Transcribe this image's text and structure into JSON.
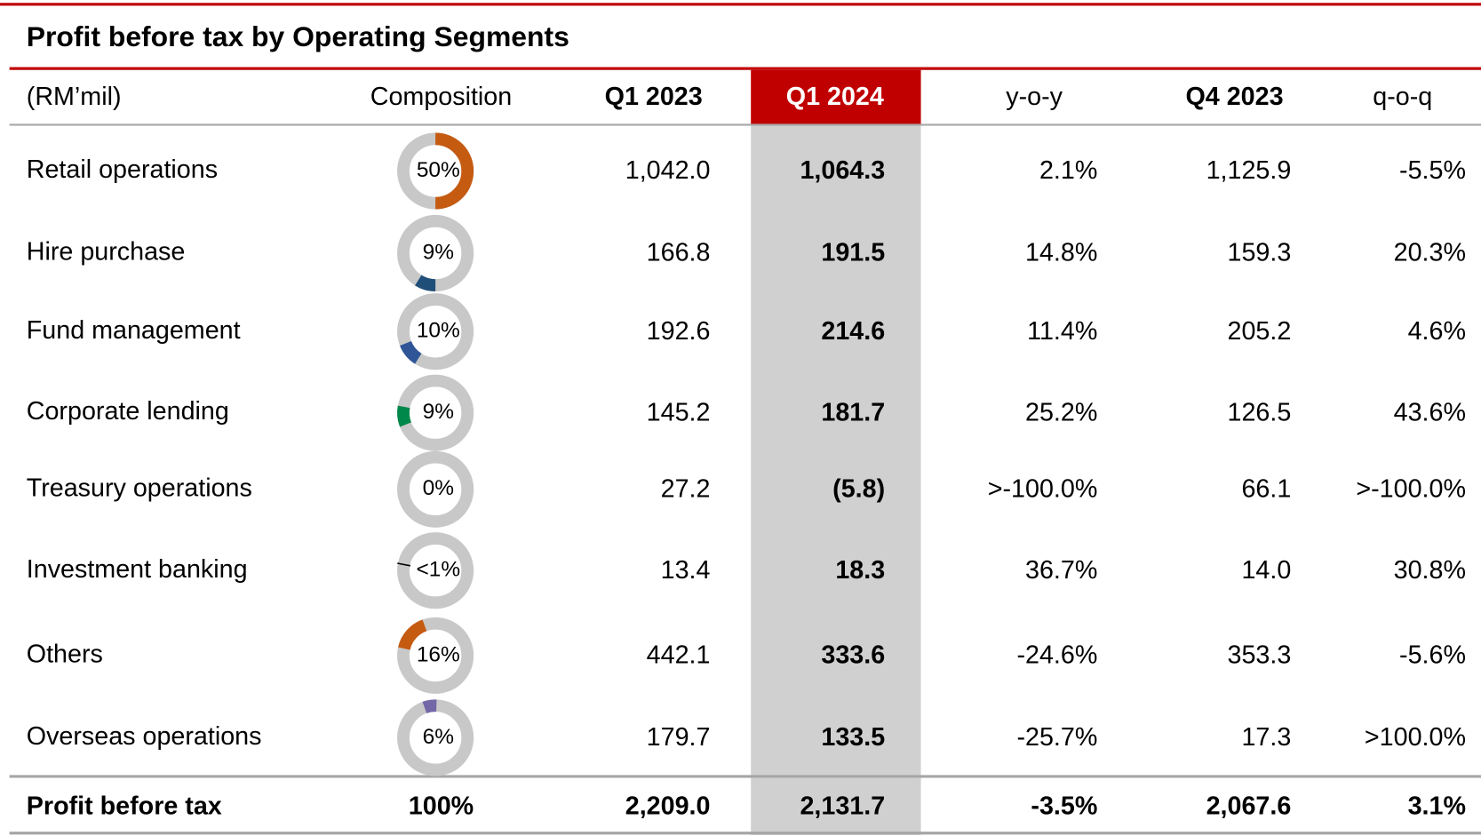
{
  "title": "Profit before tax by Operating Segments",
  "table": {
    "header": [
      "(RM’mil)",
      "Composition",
      "Q1 2023",
      "Q1 2024",
      "y-o-y",
      "Q4 2023",
      "q-o-q"
    ],
    "rows": [
      {
        "label": "Retail operations",
        "composition": {
          "value": 50,
          "label": "50%"
        },
        "color": "#c55a11",
        "cells": [
          "1,042.0",
          "1,064.3",
          "2.1%",
          "1,125.9",
          "-5.5%"
        ]
      },
      {
        "label": "Hire purchase",
        "composition": {
          "value": 9,
          "label": "9%"
        },
        "color": "#1f4e79",
        "cells": [
          "166.8",
          "191.5",
          "14.8%",
          "159.3",
          "20.3%"
        ]
      },
      {
        "label": "Fund management",
        "composition": {
          "value": 10,
          "label": "10%"
        },
        "color": "#2f5597",
        "cells": [
          "192.6",
          "214.6",
          "11.4%",
          "205.2",
          "4.6%"
        ]
      },
      {
        "label": "Corporate lending",
        "composition": {
          "value": 9,
          "label": "9%"
        },
        "color": "#00874a",
        "cells": [
          "145.2",
          "181.7",
          "25.2%",
          "126.5",
          "43.6%"
        ]
      },
      {
        "label": "Treasury operations",
        "composition": {
          "value": 0,
          "label": "0%"
        },
        "color": "#7f7f7f",
        "cells": [
          "27.2",
          "(5.8)",
          ">-100.0%",
          "66.1",
          ">-100.0%"
        ]
      },
      {
        "label": "Investment banking",
        "composition": {
          "value": 0.5,
          "label": "<1%"
        },
        "color": "#000000",
        "cells": [
          "13.4",
          "18.3",
          "36.7%",
          "14.0",
          "30.8%"
        ]
      },
      {
        "label": "Others",
        "composition": {
          "value": 16,
          "label": "16%"
        },
        "color": "#c55a11",
        "cells": [
          "442.1",
          "333.6",
          "-24.6%",
          "353.3",
          "-5.6%"
        ]
      },
      {
        "label": "Overseas operations",
        "composition": {
          "value": 6,
          "label": "6%"
        },
        "color": "#7467a8",
        "cells": [
          "179.7",
          "133.5",
          "-25.7%",
          "17.3",
          ">100.0%"
        ]
      }
    ],
    "total": {
      "label": "Profit before tax",
      "cells": [
        "100%",
        "2,209.0",
        "2,131.7",
        "-3.5%",
        "2,067.6",
        "3.1%"
      ]
    }
  }
}
